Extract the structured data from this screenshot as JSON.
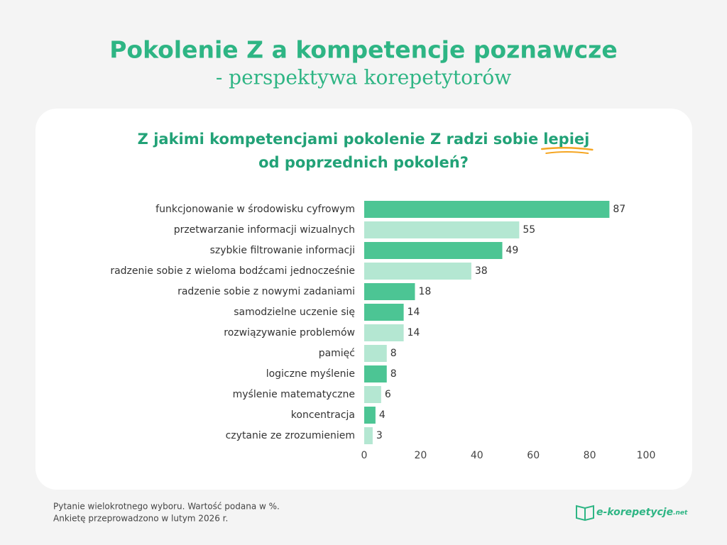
{
  "chart_data": {
    "type": "barh",
    "title": "Pokolenie Z a kompetencje poznawcze",
    "subtitle": "- perspektywa korepetytorów",
    "question": "Z jakimi kompetencjami pokolenie Z radzi sobie",
    "question_highlight": "lepiej",
    "question_end": "od poprzednich pokoleń?",
    "categories": [
      "funkcjonowanie w środowisku cyfrowym",
      "przetwarzanie informacji wizualnych",
      "szybkie filtrowanie informacji",
      "radzenie sobie z wieloma bodźcami jednocześnie",
      "radzenie sobie z nowymi zadaniami",
      "samodzielne uczenie się",
      "rozwiązywanie problemów",
      "pamięć",
      "logiczne myślenie",
      "myślenie matematyczne",
      "koncentracja",
      "czytanie ze zrozumieniem"
    ],
    "values": [
      87,
      55,
      49,
      38,
      18,
      14,
      14,
      8,
      8,
      6,
      4,
      3
    ],
    "colors": [
      "#4cc594",
      "#b4e7d2",
      "#4cc594",
      "#b4e7d2",
      "#4cc594",
      "#4cc594",
      "#b4e7d2",
      "#b4e7d2",
      "#4cc594",
      "#b4e7d2",
      "#4cc594",
      "#b4e7d2"
    ],
    "xlim": [
      0,
      100
    ],
    "xticks": [
      0,
      20,
      40,
      60,
      80,
      100
    ],
    "grid": false
  },
  "footer": {
    "notes": [
      "Pytanie wielokrotnego wyboru. Wartość podana w %.",
      "Ankietę przeprowadzono w lutym 2026 r."
    ],
    "logo": "e-korepetycje",
    "logo_suffix": ".net"
  }
}
